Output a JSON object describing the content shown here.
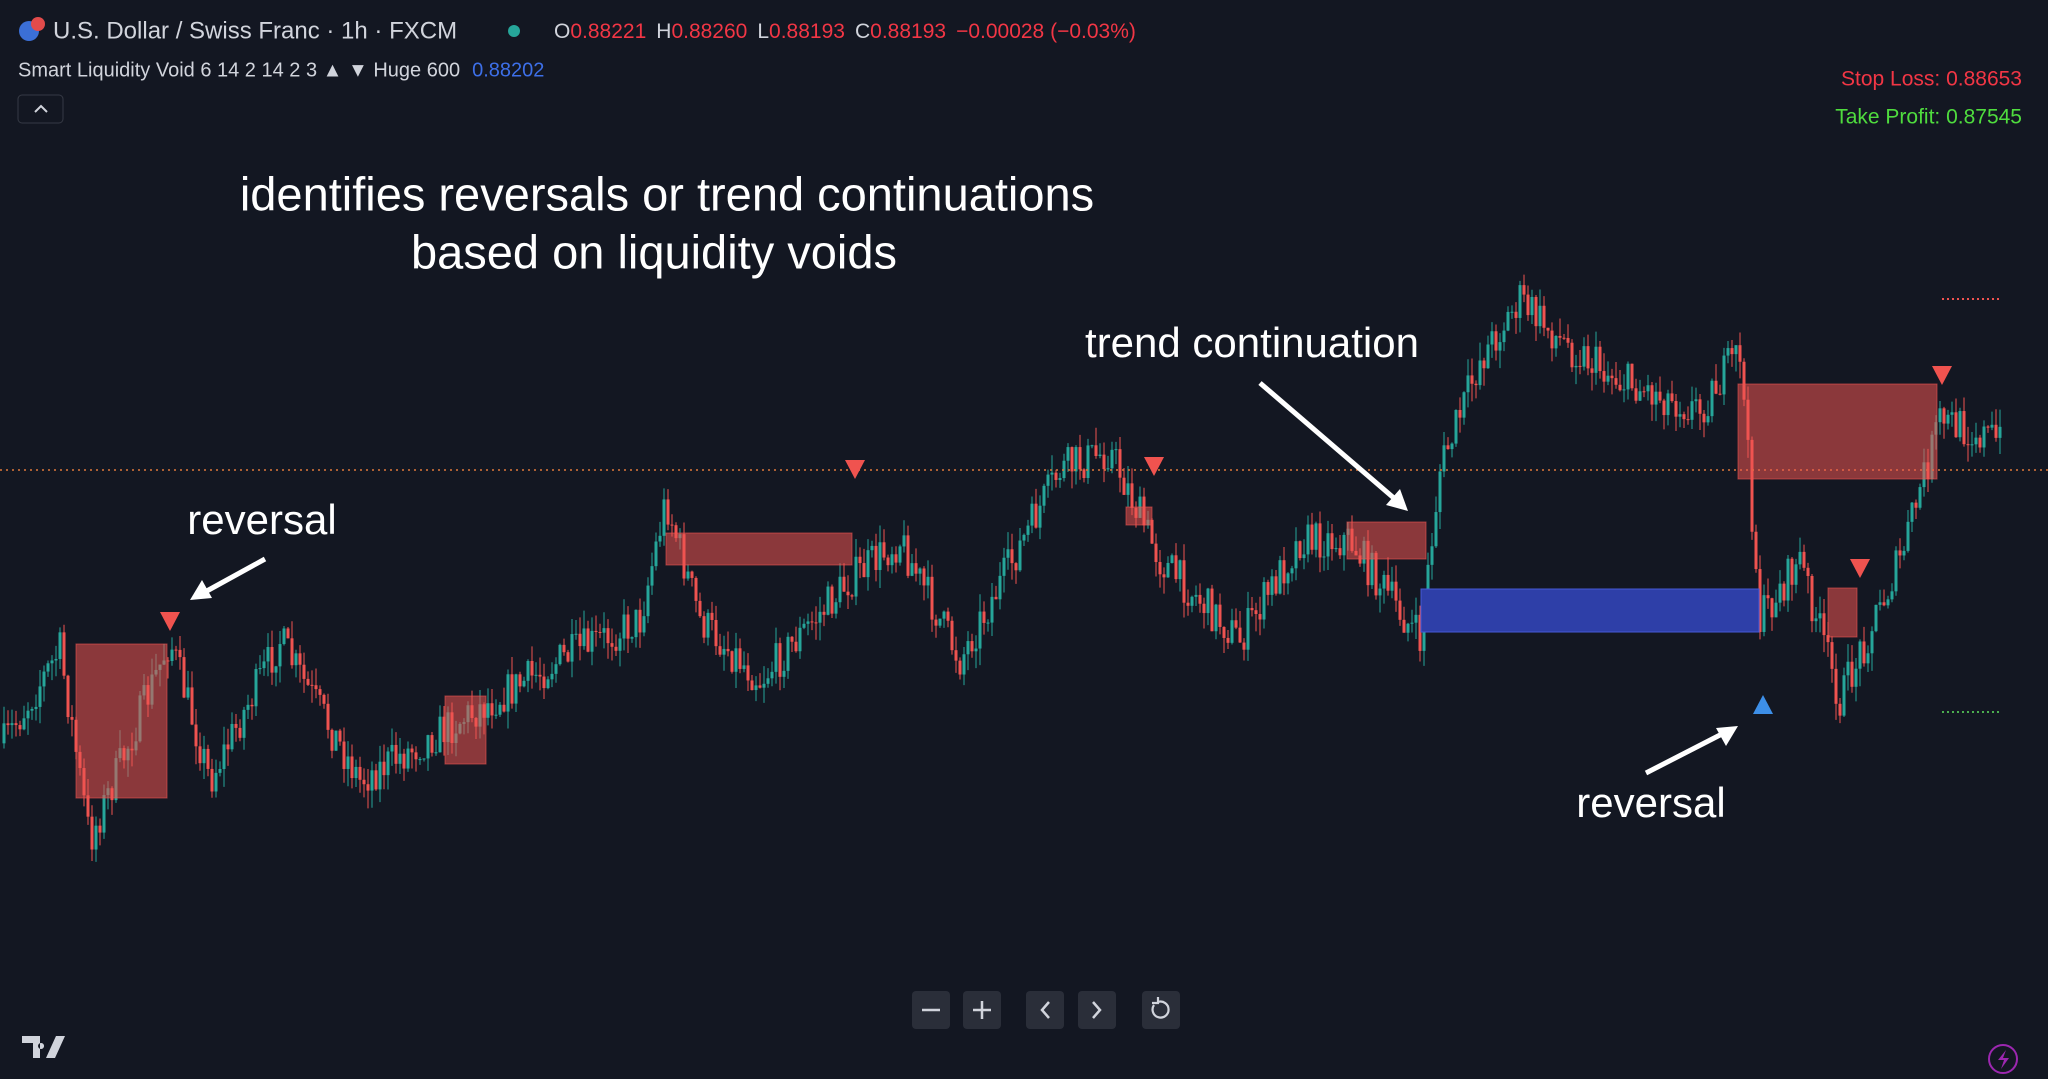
{
  "header": {
    "symbol": "U.S. Dollar / Swiss Franc · 1h · FXCM",
    "ohlc": [
      {
        "label": "O",
        "value": "0.88221"
      },
      {
        "label": "H",
        "value": "0.88260"
      },
      {
        "label": "L",
        "value": "0.88193"
      },
      {
        "label": "C",
        "value": "0.88193"
      }
    ],
    "change": "−0.00028 (−0.03%)"
  },
  "indicator": {
    "label": "Smart Liquidity Void 6 14 2 14 2 3 ▲ ▼ Huge 600",
    "value": "0.88202"
  },
  "levels": {
    "stop_loss": "Stop Loss: 0.88653",
    "take_profit": "Take Profit: 0.87545"
  },
  "annotations": {
    "title": [
      "identifies reversals or trend continuations",
      "based on liquidity voids"
    ],
    "labels": [
      "reversal",
      "trend continuation",
      "reversal"
    ]
  }
}
